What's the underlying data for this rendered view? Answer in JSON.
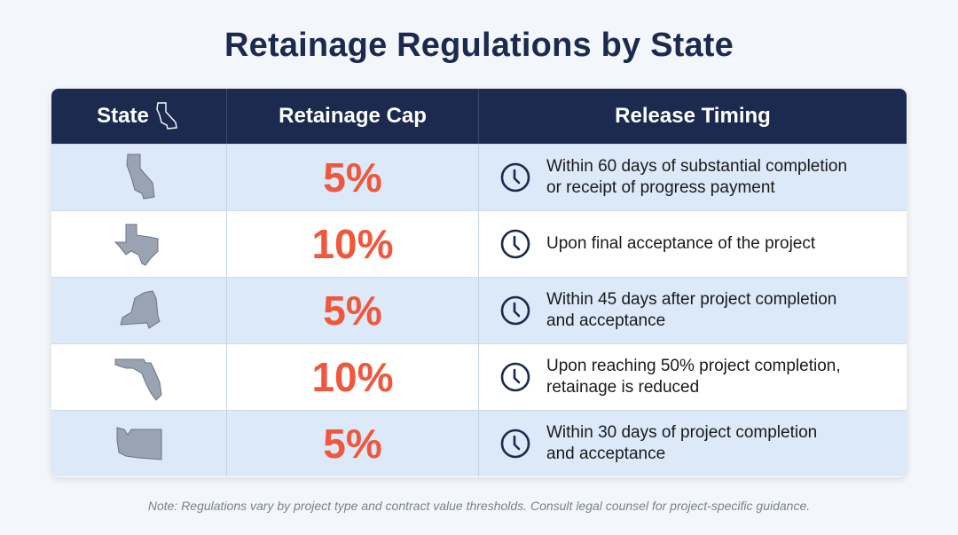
{
  "title": "Retainage Regulations by State",
  "headers": {
    "state": "State",
    "cap": "Retainage Cap",
    "timing": "Release Timing"
  },
  "header_icon": "california-outline-icon",
  "colors": {
    "header_bg": "#1b2a4e",
    "accent": "#f0573c",
    "alt_row": "#dce9f9",
    "state_fill": "#9aa3b2"
  },
  "rows": [
    {
      "state_icon": "california-shape",
      "cap": "5%",
      "timing": [
        "Within 60 days of substantial completion",
        "or receipt of progress payment"
      ]
    },
    {
      "state_icon": "texas-shape",
      "cap": "10%",
      "timing": [
        "Upon final acceptance of the project",
        ""
      ]
    },
    {
      "state_icon": "new-york-shape",
      "cap": "5%",
      "timing": [
        "Within 45 days after project completion",
        "and acceptance"
      ]
    },
    {
      "state_icon": "florida-shape",
      "cap": "10%",
      "timing": [
        "Upon reaching 50% project completion,",
        "retainage is reduced"
      ]
    },
    {
      "state_icon": "washington-shape",
      "cap": "5%",
      "timing": [
        "Within 30 days of project completion",
        "and acceptance"
      ]
    }
  ],
  "note": "Note: Regulations vary by project type and contract value thresholds. Consult legal counsel for project-specific guidance."
}
